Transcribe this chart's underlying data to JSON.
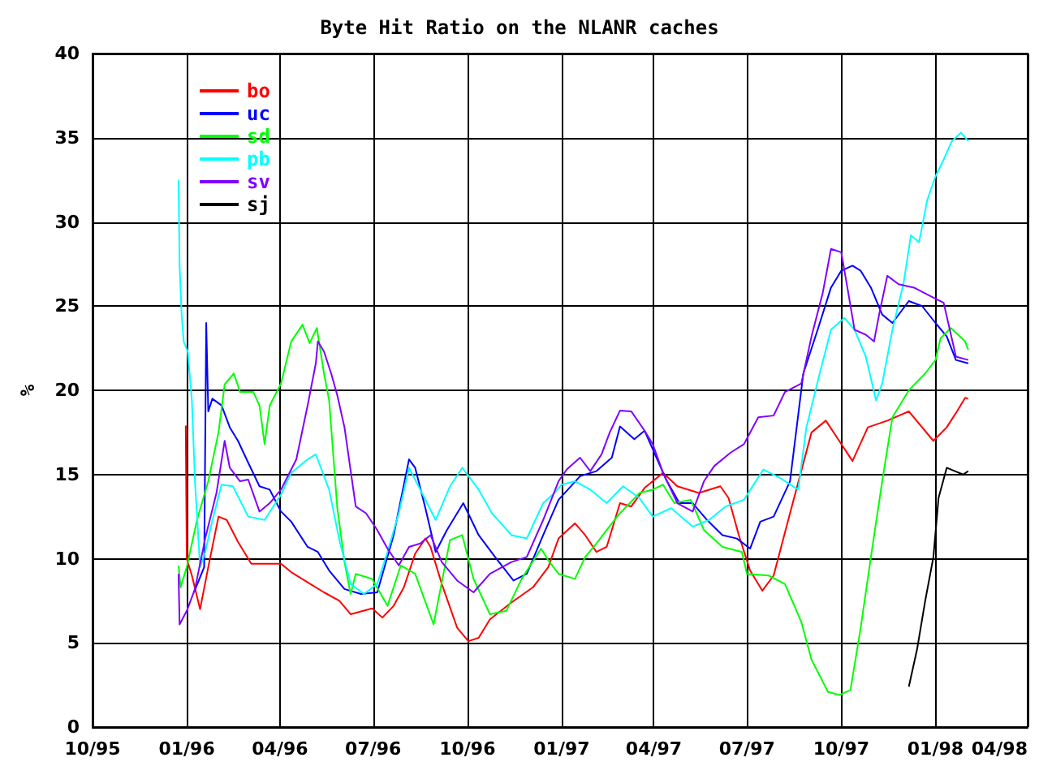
{
  "chart_data": {
    "type": "line",
    "title": "Byte Hit Ratio on the NLANR caches",
    "ylabel": "%",
    "xlim": [
      "1995-10-01",
      "1998-04-01"
    ],
    "xticks": [
      {
        "value": "1995-10-01",
        "label": "10/95"
      },
      {
        "value": "1996-01-01",
        "label": "01/96"
      },
      {
        "value": "1996-04-01",
        "label": "04/96"
      },
      {
        "value": "1996-07-01",
        "label": "07/96"
      },
      {
        "value": "1996-10-01",
        "label": "10/96"
      },
      {
        "value": "1997-01-01",
        "label": "01/97"
      },
      {
        "value": "1997-04-01",
        "label": "04/97"
      },
      {
        "value": "1997-07-01",
        "label": "07/97"
      },
      {
        "value": "1997-10-01",
        "label": "10/97"
      },
      {
        "value": "1998-01-01",
        "label": "01/98"
      },
      {
        "value": "1998-04-01",
        "label": "04/98"
      }
    ],
    "ylim": [
      0,
      40
    ],
    "yticks": [
      0,
      5,
      10,
      15,
      20,
      25,
      30,
      35,
      40
    ],
    "grid": true,
    "legend": "top left",
    "marker": "none",
    "line_style": "solid",
    "series": [
      {
        "name": "bo",
        "color": "#ff0000",
        "x": [
          "1995-12-31",
          "1996-01-01",
          "1996-01-06",
          "1996-01-14",
          "1996-01-22",
          "1996-02-01",
          "1996-02-09",
          "1996-02-20",
          "1996-03-04",
          "1996-04-02",
          "1996-04-12",
          "1996-04-28",
          "1996-05-14",
          "1996-05-29",
          "1996-06-09",
          "1996-06-30",
          "1996-07-10",
          "1996-07-21",
          "1996-07-31",
          "1996-08-11",
          "1996-08-21",
          "1996-08-26",
          "1996-09-06",
          "1996-09-21",
          "1996-10-02",
          "1996-10-12",
          "1996-10-23",
          "1996-11-13",
          "1996-12-04",
          "1996-12-19",
          "1996-12-29",
          "1997-01-14",
          "1997-01-24",
          "1997-02-04",
          "1997-02-14",
          "1997-02-27",
          "1997-03-10",
          "1997-03-23",
          "1997-04-10",
          "1997-04-24",
          "1997-05-15",
          "1997-06-05",
          "1997-06-13",
          "1997-06-23",
          "1997-07-04",
          "1997-07-16",
          "1997-07-27",
          "1997-08-12",
          "1997-09-02",
          "1997-09-16",
          "1997-09-29",
          "1997-10-12",
          "1997-10-27",
          "1997-11-15",
          "1997-12-06",
          "1997-12-30",
          "1998-01-12",
          "1998-01-22",
          "1998-01-30",
          "1998-02-02"
        ],
        "values": [
          17.9,
          10.0,
          9.0,
          7.0,
          9.5,
          12.5,
          12.3,
          11.0,
          9.7,
          9.7,
          9.2,
          8.6,
          8.0,
          7.5,
          6.7,
          7.05,
          6.5,
          7.2,
          8.3,
          10.3,
          11.2,
          10.7,
          8.5,
          5.9,
          5.1,
          5.3,
          6.4,
          7.4,
          8.3,
          9.5,
          11.2,
          12.1,
          11.4,
          10.4,
          10.7,
          13.3,
          13.1,
          14.2,
          15.1,
          14.3,
          13.9,
          14.3,
          13.6,
          11.4,
          9.3,
          8.1,
          9.0,
          12.7,
          17.5,
          18.2,
          17.0,
          15.8,
          17.8,
          18.2,
          18.75,
          17.0,
          17.8,
          18.75,
          19.55,
          19.5
        ]
      },
      {
        "name": "uc",
        "color": "#0000ff",
        "x": [
          "1996-01-08",
          "1996-01-18",
          "1996-01-20",
          "1996-01-22",
          "1996-01-26",
          "1996-02-04",
          "1996-02-12",
          "1996-02-20",
          "1996-03-01",
          "1996-03-12",
          "1996-03-22",
          "1996-04-02",
          "1996-04-12",
          "1996-04-28",
          "1996-05-08",
          "1996-05-19",
          "1996-06-03",
          "1996-06-19",
          "1996-07-05",
          "1996-07-21",
          "1996-08-05",
          "1996-08-11",
          "1996-08-21",
          "1996-08-31",
          "1996-09-11",
          "1996-09-27",
          "1996-10-12",
          "1996-10-28",
          "1996-11-15",
          "1996-11-28",
          "1996-12-14",
          "1996-12-29",
          "1997-01-19",
          "1997-02-04",
          "1997-02-19",
          "1997-02-27",
          "1997-03-13",
          "1997-03-23",
          "1997-03-31",
          "1997-04-13",
          "1997-04-26",
          "1997-05-09",
          "1997-05-23",
          "1997-06-07",
          "1997-06-21",
          "1997-07-04",
          "1997-07-14",
          "1997-07-27",
          "1997-08-12",
          "1997-08-25",
          "1997-09-08",
          "1997-09-21",
          "1997-10-01",
          "1997-10-12",
          "1997-10-20",
          "1997-10-30",
          "1997-11-10",
          "1997-11-20",
          "1997-12-06",
          "1997-12-19",
          "1998-01-01",
          "1998-01-12",
          "1998-01-21",
          "1998-02-02"
        ],
        "values": [
          8.0,
          9.5,
          24.0,
          18.75,
          19.5,
          19.1,
          17.8,
          17.0,
          15.7,
          14.3,
          14.1,
          12.8,
          12.2,
          10.7,
          10.4,
          9.3,
          8.2,
          7.9,
          8.0,
          11.4,
          15.9,
          15.4,
          13.0,
          10.4,
          11.7,
          13.3,
          11.4,
          10.1,
          8.7,
          9.1,
          11.4,
          13.5,
          14.9,
          15.2,
          16.0,
          17.85,
          17.1,
          17.6,
          16.5,
          14.7,
          13.3,
          13.3,
          12.3,
          11.4,
          11.2,
          10.6,
          12.2,
          12.5,
          14.6,
          21.0,
          23.6,
          26.1,
          27.1,
          27.4,
          27.1,
          26.1,
          24.5,
          24.0,
          25.3,
          25.0,
          24.0,
          23.2,
          21.8,
          21.6
        ]
      },
      {
        "name": "sd",
        "color": "#00ff00",
        "x": [
          "1995-12-24",
          "1995-12-26",
          "1996-01-01",
          "1996-01-11",
          "1996-01-22",
          "1996-02-01",
          "1996-02-07",
          "1996-02-16",
          "1996-02-22",
          "1996-03-06",
          "1996-03-12",
          "1996-03-17",
          "1996-03-22",
          "1996-04-02",
          "1996-04-12",
          "1996-04-23",
          "1996-04-30",
          "1996-05-07",
          "1996-05-14",
          "1996-05-19",
          "1996-05-27",
          "1996-06-03",
          "1996-06-09",
          "1996-06-14",
          "1996-06-30",
          "1996-07-15",
          "1996-07-28",
          "1996-08-11",
          "1996-08-29",
          "1996-09-14",
          "1996-09-26",
          "1996-10-07",
          "1996-10-23",
          "1996-11-08",
          "1996-11-23",
          "1996-12-12",
          "1996-12-19",
          "1996-12-29",
          "1997-01-14",
          "1997-01-24",
          "1997-02-04",
          "1997-02-14",
          "1997-02-27",
          "1997-03-18",
          "1997-03-31",
          "1997-04-10",
          "1997-04-21",
          "1997-05-07",
          "1997-05-20",
          "1997-06-07",
          "1997-06-26",
          "1997-07-01",
          "1997-07-22",
          "1997-08-07",
          "1997-08-23",
          "1997-09-02",
          "1997-09-18",
          "1997-09-29",
          "1997-10-10",
          "1997-10-20",
          "1997-10-30",
          "1997-11-10",
          "1997-11-20",
          "1997-12-06",
          "1997-12-22",
          "1998-01-01",
          "1998-01-06",
          "1998-01-16",
          "1998-01-30",
          "1998-02-02"
        ],
        "values": [
          9.6,
          8.3,
          9.5,
          12.3,
          14.6,
          17.5,
          20.35,
          21.0,
          19.9,
          19.9,
          19.1,
          16.8,
          19.1,
          20.4,
          22.9,
          23.9,
          22.8,
          23.7,
          21.0,
          19.4,
          13.0,
          9.8,
          7.9,
          9.1,
          8.8,
          7.2,
          9.6,
          9.1,
          6.1,
          11.1,
          11.4,
          8.8,
          6.7,
          6.9,
          8.8,
          10.6,
          9.9,
          9.1,
          8.8,
          10.1,
          10.9,
          11.7,
          12.7,
          13.9,
          14.1,
          14.4,
          13.3,
          13.5,
          11.7,
          10.7,
          10.4,
          9.1,
          9.0,
          8.5,
          6.25,
          4.0,
          2.1,
          1.9,
          2.2,
          5.9,
          10.1,
          14.6,
          18.4,
          20.0,
          21.0,
          21.8,
          23.1,
          23.7,
          22.9,
          22.4
        ]
      },
      {
        "name": "pb",
        "color": "#00ffff",
        "x": [
          "1995-12-24",
          "1995-12-25",
          "1995-12-27",
          "1995-12-29",
          "1996-01-02",
          "1996-01-06",
          "1996-01-09",
          "1996-01-14",
          "1996-01-19",
          "1996-01-25",
          "1996-02-04",
          "1996-02-15",
          "1996-03-01",
          "1996-03-17",
          "1996-04-02",
          "1996-04-12",
          "1996-04-28",
          "1996-05-06",
          "1996-05-19",
          "1996-05-29",
          "1996-06-09",
          "1996-06-22",
          "1996-07-05",
          "1996-07-15",
          "1996-07-26",
          "1996-08-05",
          "1996-08-16",
          "1996-08-31",
          "1996-09-14",
          "1996-09-26",
          "1996-10-12",
          "1996-10-25",
          "1996-11-13",
          "1996-11-28",
          "1996-12-14",
          "1996-12-25",
          "1997-01-01",
          "1997-01-14",
          "1997-01-29",
          "1997-02-14",
          "1997-03-02",
          "1997-03-18",
          "1997-03-31",
          "1997-04-18",
          "1997-05-09",
          "1997-05-25",
          "1997-06-10",
          "1997-06-28",
          "1997-07-17",
          "1997-08-02",
          "1997-08-20",
          "1997-08-28",
          "1997-09-10",
          "1997-09-21",
          "1997-10-04",
          "1997-10-14",
          "1997-10-25",
          "1997-11-04",
          "1997-11-10",
          "1997-11-20",
          "1997-12-01",
          "1997-12-08",
          "1997-12-16",
          "1997-12-24",
          "1998-01-01",
          "1998-01-09",
          "1998-01-17",
          "1998-01-26",
          "1998-02-02"
        ],
        "values": [
          32.5,
          27.4,
          24.5,
          22.9,
          22.3,
          19.4,
          14.6,
          9.5,
          10.4,
          12.0,
          14.4,
          14.3,
          12.5,
          12.3,
          13.8,
          15.1,
          15.9,
          16.2,
          14.1,
          11.1,
          8.5,
          7.9,
          8.5,
          10.4,
          12.7,
          15.4,
          14.1,
          12.3,
          14.3,
          15.4,
          14.1,
          12.7,
          11.4,
          11.2,
          13.3,
          13.9,
          14.4,
          14.6,
          14.1,
          13.3,
          14.3,
          13.6,
          12.5,
          13.0,
          11.9,
          12.3,
          13.1,
          13.5,
          15.3,
          14.8,
          14.1,
          17.8,
          21.0,
          23.6,
          24.3,
          23.6,
          22.0,
          19.4,
          20.4,
          23.6,
          26.4,
          29.2,
          28.8,
          31.3,
          32.7,
          33.7,
          34.8,
          35.3,
          34.8
        ]
      },
      {
        "name": "sv",
        "color": "#8000ff",
        "x": [
          "1995-12-24",
          "1995-12-25",
          "1996-01-01",
          "1996-01-09",
          "1996-01-19",
          "1996-01-30",
          "1996-02-07",
          "1996-02-12",
          "1996-02-22",
          "1996-03-01",
          "1996-03-12",
          "1996-03-22",
          "1996-04-02",
          "1996-04-17",
          "1996-04-28",
          "1996-05-06",
          "1996-05-08",
          "1996-05-14",
          "1996-05-21",
          "1996-05-27",
          "1996-06-03",
          "1996-06-14",
          "1996-06-24",
          "1996-07-05",
          "1996-07-15",
          "1996-07-26",
          "1996-08-05",
          "1996-08-16",
          "1996-08-26",
          "1996-09-06",
          "1996-09-21",
          "1996-10-07",
          "1996-10-23",
          "1996-11-13",
          "1996-11-28",
          "1996-12-14",
          "1996-12-29",
          "1997-01-06",
          "1997-01-19",
          "1997-01-29",
          "1997-02-09",
          "1997-02-17",
          "1997-02-27",
          "1997-03-10",
          "1997-03-23",
          "1997-03-31",
          "1997-04-10",
          "1997-04-24",
          "1997-05-09",
          "1997-05-20",
          "1997-05-30",
          "1997-06-15",
          "1997-06-28",
          "1997-07-12",
          "1997-07-27",
          "1997-08-07",
          "1997-08-23",
          "1997-09-02",
          "1997-09-13",
          "1997-09-21",
          "1997-10-01",
          "1997-10-07",
          "1997-10-14",
          "1997-10-25",
          "1997-11-02",
          "1997-11-07",
          "1997-11-15",
          "1997-11-26",
          "1997-12-11",
          "1997-12-27",
          "1998-01-09",
          "1998-01-21",
          "1998-02-02"
        ],
        "values": [
          9.1,
          6.1,
          6.9,
          8.2,
          11.2,
          13.9,
          17.0,
          15.4,
          14.6,
          14.7,
          12.8,
          13.3,
          14.1,
          15.9,
          19.1,
          21.6,
          22.9,
          22.3,
          21.0,
          19.7,
          17.8,
          13.1,
          12.7,
          11.7,
          10.6,
          9.6,
          10.7,
          10.9,
          11.4,
          9.8,
          8.7,
          8.0,
          9.1,
          9.8,
          10.1,
          12.3,
          14.6,
          15.3,
          16.0,
          15.2,
          16.2,
          17.5,
          18.8,
          18.75,
          17.6,
          16.8,
          15.1,
          13.3,
          12.8,
          14.6,
          15.5,
          16.3,
          16.8,
          18.4,
          18.5,
          19.9,
          20.4,
          23.2,
          25.8,
          28.4,
          28.2,
          26.1,
          23.6,
          23.3,
          22.9,
          24.5,
          26.8,
          26.3,
          26.1,
          25.6,
          25.2,
          22.0,
          21.8
        ]
      },
      {
        "name": "sj",
        "color": "#000000",
        "x": [
          "1997-12-06",
          "1997-12-14",
          "1997-12-22",
          "1997-12-30",
          "1998-01-04",
          "1998-01-12",
          "1998-01-20",
          "1998-01-28",
          "1998-02-02"
        ],
        "values": [
          2.4,
          4.6,
          7.5,
          10.1,
          13.6,
          15.4,
          15.2,
          15.0,
          15.2
        ]
      }
    ]
  }
}
